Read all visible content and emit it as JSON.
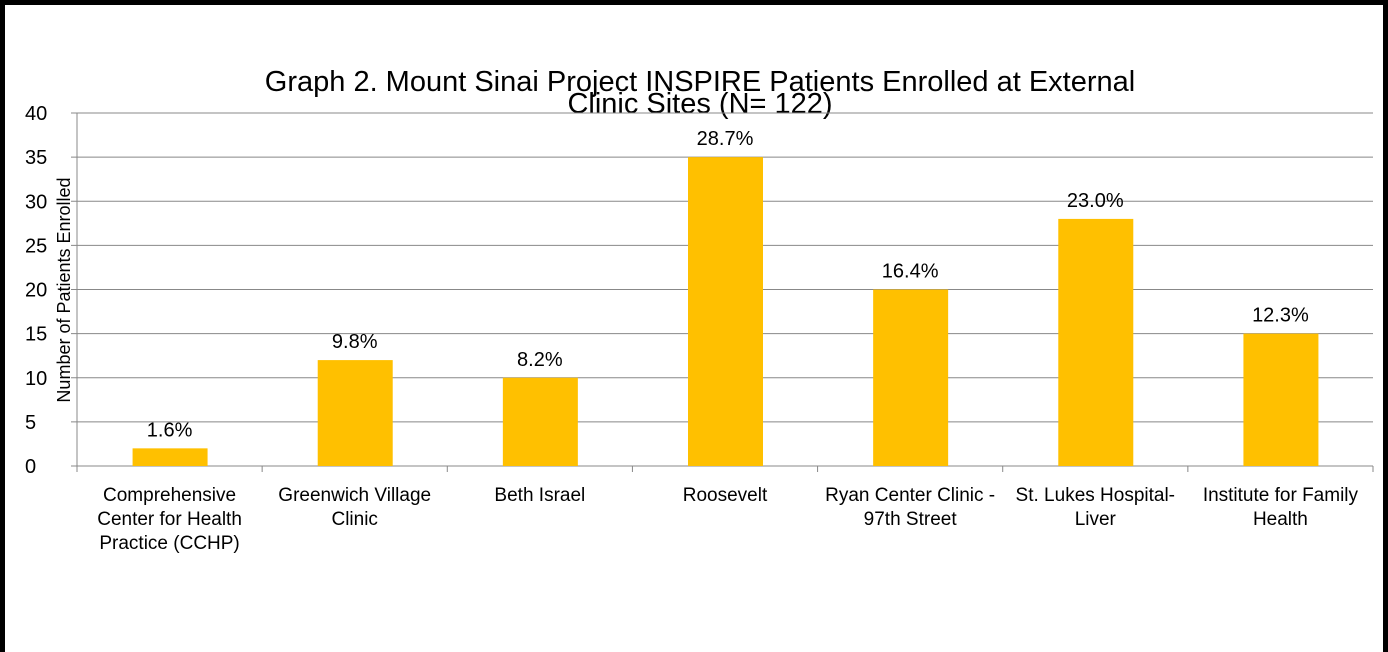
{
  "chart_data": {
    "type": "bar",
    "title_lines": [
      "Graph 2. Mount Sinai Project INSPIRE Patients Enrolled at External",
      "Clinic Sites (N= 122)"
    ],
    "y_label": "Number of Patients Enrolled",
    "categories": [
      "Comprehensive Center for Health Practice (CCHP)",
      "Greenwich Village Clinic",
      "Beth Israel",
      "Roosevelt",
      "Ryan Center Clinic - 97th Street",
      "St. Lukes Hospital- Liver",
      "Institute for Family Health"
    ],
    "values": [
      2,
      12,
      10,
      35,
      20,
      28,
      15
    ],
    "value_labels": [
      "1.6%",
      "9.8%",
      "8.2%",
      "28.7%",
      "16.4%",
      "23.0%",
      "12.3%"
    ],
    "color": "#ffc000",
    "ylim": [
      0,
      40
    ],
    "yticks": [
      0,
      5,
      10,
      15,
      20,
      25,
      30,
      35,
      40
    ],
    "grid": true
  }
}
